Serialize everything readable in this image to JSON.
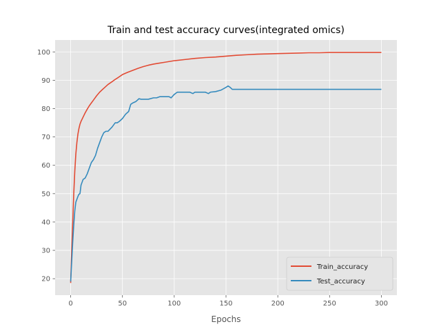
{
  "chart_data": {
    "type": "line",
    "title": "Train and test accuracy curves(integrated omics)",
    "xlabel": "Epochs",
    "ylabel": "",
    "xlim": [
      -15,
      315
    ],
    "ylim": [
      14.2,
      104.2
    ],
    "xticks": [
      0,
      50,
      100,
      150,
      200,
      250,
      300
    ],
    "yticks": [
      20,
      30,
      40,
      50,
      60,
      70,
      80,
      90,
      100
    ],
    "grid": true,
    "legend_position": "lower-right",
    "colors": {
      "train": "#E24A33",
      "test": "#348ABD",
      "plot_bg": "#E5E5E5",
      "grid": "#FFFFFF"
    },
    "series": [
      {
        "name": "Train_accuracy",
        "x": [
          0,
          1,
          2,
          3,
          4,
          5,
          6,
          7,
          8,
          9,
          10,
          12,
          14,
          16,
          18,
          20,
          22,
          25,
          28,
          30,
          33,
          36,
          40,
          43,
          46,
          50,
          55,
          60,
          65,
          70,
          75,
          80,
          85,
          90,
          95,
          100,
          110,
          120,
          130,
          140,
          150,
          160,
          170,
          180,
          190,
          200,
          210,
          220,
          230,
          240,
          250,
          260,
          270,
          280,
          290,
          300
        ],
        "values": [
          18.5,
          30,
          40,
          50,
          58,
          64,
          68,
          71,
          73,
          74.5,
          75.5,
          77,
          78.5,
          79.8,
          81,
          82,
          83,
          84.5,
          85.8,
          86.5,
          87.5,
          88.5,
          89.5,
          90.3,
          91,
          92,
          92.8,
          93.5,
          94.2,
          94.8,
          95.3,
          95.7,
          96,
          96.3,
          96.6,
          96.9,
          97.3,
          97.7,
          98,
          98.2,
          98.5,
          98.8,
          99,
          99.2,
          99.3,
          99.4,
          99.5,
          99.6,
          99.7,
          99.7,
          99.8,
          99.8,
          99.8,
          99.8,
          99.8,
          99.8
        ]
      },
      {
        "name": "Test_accuracy",
        "x": [
          0,
          1,
          2,
          3,
          4,
          5,
          6,
          7,
          8,
          9,
          10,
          12,
          14,
          16,
          18,
          20,
          22,
          24,
          26,
          28,
          30,
          32,
          34,
          36,
          40,
          43,
          45,
          47,
          50,
          53,
          56,
          58,
          60,
          63,
          66,
          68,
          70,
          75,
          80,
          83,
          86,
          90,
          93,
          95,
          97,
          100,
          103,
          105,
          110,
          115,
          118,
          120,
          125,
          130,
          133,
          135,
          140,
          145,
          150,
          152,
          154,
          156,
          160,
          180,
          200,
          250,
          300
        ],
        "values": [
          19,
          26,
          33,
          39,
          44,
          47,
          48,
          49,
          49.8,
          50,
          53,
          55,
          55.5,
          57,
          59,
          61,
          62,
          63.5,
          66,
          68,
          70,
          71.5,
          72,
          72,
          73.5,
          75,
          75,
          75.5,
          76.5,
          78,
          79,
          81.5,
          82,
          82.5,
          83.5,
          83.3,
          83.3,
          83.3,
          83.8,
          83.8,
          84.2,
          84.2,
          84.2,
          84.2,
          83.8,
          85,
          85.8,
          85.8,
          85.8,
          85.8,
          85.3,
          85.8,
          85.8,
          85.8,
          85.3,
          85.8,
          86,
          86.5,
          87.5,
          88,
          87.5,
          86.8,
          86.8,
          86.8,
          86.8,
          86.8,
          86.8
        ]
      }
    ]
  }
}
